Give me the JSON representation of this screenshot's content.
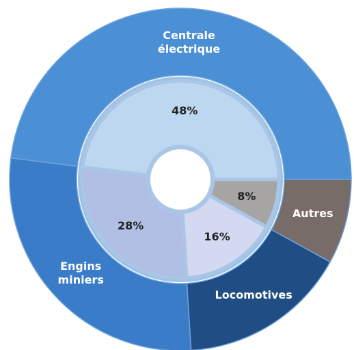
{
  "chart_data": {
    "type": "donut",
    "categories": [
      "Centrale électrique",
      "Engins miniers",
      "Locomotives",
      "Autres"
    ],
    "values": [
      48,
      28,
      16,
      8
    ],
    "value_labels": [
      "48%",
      "28%",
      "16%",
      "8%"
    ],
    "colors": [
      "#bcd7ef",
      "#b2bfe5",
      "#d3d9f1",
      "#a7a5a4"
    ],
    "outer_colors": [
      "#4b8fd5",
      "#3a7cc7",
      "#1f4d84",
      "#786c68"
    ]
  }
}
